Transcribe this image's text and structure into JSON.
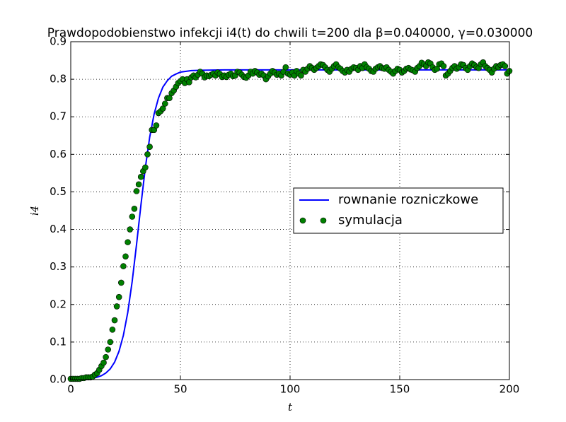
{
  "chart_data": {
    "type": "line",
    "title": "Prawdopodobienstwo infekcji i4(t) do chwili t=200 dla β=0.040000, γ=0.030000",
    "xlabel": "t",
    "ylabel": "i4",
    "xlim": [
      0,
      200
    ],
    "ylim": [
      0,
      0.9
    ],
    "xticks": [
      0,
      50,
      100,
      150,
      200
    ],
    "yticks": [
      {
        "value": 0,
        "label": "0.0"
      },
      0.1,
      0.2,
      0.3,
      0.4,
      0.5,
      0.6,
      0.7,
      0.8,
      0.9
    ],
    "grid": true,
    "legend": "center right",
    "series": [
      {
        "name": "rownanie rozniczkowe",
        "color": "#0000ff",
        "type": "line",
        "x": [
          0,
          2,
          4,
          6,
          8,
          10,
          12,
          14,
          16,
          18,
          20,
          22,
          24,
          26,
          28,
          30,
          32,
          34,
          36,
          38,
          40,
          42,
          44,
          46,
          48,
          50,
          55,
          60,
          70,
          100,
          150,
          200
        ],
        "values": [
          0.0003,
          0.0005,
          0.0008,
          0.0014,
          0.0023,
          0.0038,
          0.0063,
          0.0105,
          0.0174,
          0.0285,
          0.0466,
          0.0752,
          0.118,
          0.179,
          0.261,
          0.36,
          0.465,
          0.564,
          0.646,
          0.707,
          0.75,
          0.779,
          0.796,
          0.808,
          0.814,
          0.819,
          0.823,
          0.824,
          0.825,
          0.825,
          0.825,
          0.825
        ]
      },
      {
        "name": "symulacja",
        "color": "#008000",
        "type": "scatter",
        "x": [
          0,
          1,
          2,
          3,
          4,
          5,
          6,
          7,
          8,
          9,
          10,
          11,
          12,
          13,
          14,
          15,
          16,
          17,
          18,
          19,
          20,
          21,
          22,
          23,
          24,
          25,
          26,
          27,
          28,
          29,
          30,
          31,
          32,
          33,
          34,
          35,
          36,
          37,
          38,
          39,
          40,
          41,
          42,
          43,
          44,
          45,
          46,
          47,
          48,
          49,
          50,
          51,
          52,
          53,
          54,
          55,
          56,
          57,
          58,
          59,
          60,
          61,
          62,
          63,
          64,
          65,
          66,
          67,
          68,
          69,
          70,
          71,
          72,
          73,
          74,
          75,
          76,
          77,
          78,
          79,
          80,
          81,
          82,
          83,
          84,
          85,
          86,
          87,
          88,
          89,
          90,
          91,
          92,
          93,
          94,
          95,
          96,
          97,
          98,
          99,
          100,
          101,
          102,
          103,
          104,
          105,
          106,
          107,
          108,
          109,
          110,
          111,
          112,
          113,
          114,
          115,
          116,
          117,
          118,
          119,
          120,
          121,
          122,
          123,
          124,
          125,
          126,
          127,
          128,
          129,
          130,
          131,
          132,
          133,
          134,
          135,
          136,
          137,
          138,
          139,
          140,
          141,
          142,
          143,
          144,
          145,
          146,
          147,
          148,
          149,
          150,
          151,
          152,
          153,
          154,
          155,
          156,
          157,
          158,
          159,
          160,
          161,
          162,
          163,
          164,
          165,
          166,
          167,
          168,
          169,
          170,
          171,
          172,
          173,
          174,
          175,
          176,
          177,
          178,
          179,
          180,
          181,
          182,
          183,
          184,
          185,
          186,
          187,
          188,
          189,
          190,
          191,
          192,
          193,
          194,
          195,
          196,
          197,
          198,
          199,
          200
        ],
        "values": [
          0.002,
          0.002,
          0.002,
          0.002,
          0.002,
          0.004,
          0.004,
          0.006,
          0.006,
          0.006,
          0.008,
          0.013,
          0.017,
          0.026,
          0.036,
          0.045,
          0.06,
          0.08,
          0.1,
          0.133,
          0.158,
          0.195,
          0.22,
          0.258,
          0.302,
          0.328,
          0.366,
          0.4,
          0.434,
          0.455,
          0.502,
          0.52,
          0.54,
          0.555,
          0.565,
          0.6,
          0.62,
          0.665,
          0.665,
          0.677,
          0.71,
          0.715,
          0.722,
          0.735,
          0.75,
          0.75,
          0.763,
          0.77,
          0.78,
          0.79,
          0.795,
          0.8,
          0.79,
          0.8,
          0.792,
          0.805,
          0.81,
          0.805,
          0.812,
          0.82,
          0.815,
          0.805,
          0.81,
          0.808,
          0.812,
          0.815,
          0.81,
          0.818,
          0.814,
          0.806,
          0.81,
          0.806,
          0.812,
          0.815,
          0.808,
          0.81,
          0.82,
          0.818,
          0.812,
          0.806,
          0.804,
          0.81,
          0.82,
          0.815,
          0.822,
          0.818,
          0.812,
          0.815,
          0.81,
          0.8,
          0.808,
          0.815,
          0.822,
          0.818,
          0.812,
          0.815,
          0.81,
          0.82,
          0.832,
          0.815,
          0.812,
          0.818,
          0.81,
          0.822,
          0.815,
          0.81,
          0.825,
          0.82,
          0.828,
          0.835,
          0.83,
          0.825,
          0.83,
          0.835,
          0.84,
          0.838,
          0.832,
          0.825,
          0.82,
          0.828,
          0.835,
          0.84,
          0.832,
          0.828,
          0.822,
          0.818,
          0.825,
          0.82,
          0.828,
          0.832,
          0.83,
          0.825,
          0.835,
          0.83,
          0.84,
          0.832,
          0.828,
          0.822,
          0.82,
          0.828,
          0.832,
          0.835,
          0.83,
          0.828,
          0.832,
          0.825,
          0.82,
          0.815,
          0.822,
          0.828,
          0.825,
          0.818,
          0.822,
          0.828,
          0.83,
          0.826,
          0.824,
          0.82,
          0.83,
          0.835,
          0.844,
          0.84,
          0.835,
          0.845,
          0.842,
          0.832,
          0.825,
          0.828,
          0.84,
          0.842,
          0.835,
          0.81,
          0.815,
          0.822,
          0.83,
          0.835,
          0.828,
          0.832,
          0.84,
          0.838,
          0.83,
          0.825,
          0.835,
          0.842,
          0.838,
          0.832,
          0.83,
          0.84,
          0.845,
          0.835,
          0.83,
          0.825,
          0.818,
          0.828,
          0.835,
          0.832,
          0.838,
          0.84,
          0.835,
          0.815,
          0.822
        ]
      }
    ]
  }
}
